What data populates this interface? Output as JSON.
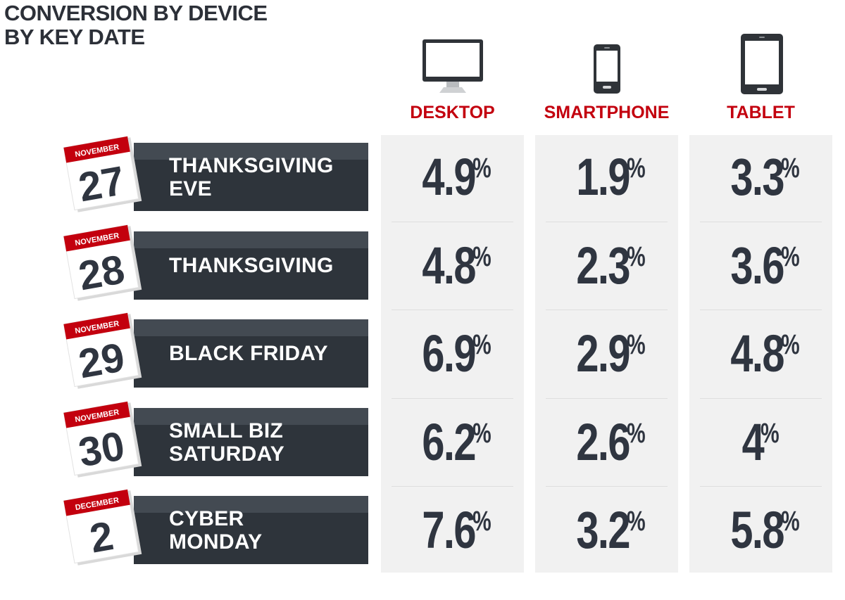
{
  "title": {
    "line1": "CONVERSION BY DEVICE",
    "line2": "BY KEY DATE"
  },
  "colors": {
    "accent_red": "#c3000e",
    "banner_dark": "#2e343b",
    "banner_stripe": "#434a52",
    "column_bg": "#f1f1f1",
    "value_text": "#2f3540"
  },
  "columns": [
    {
      "label": "DESKTOP",
      "icon": "desktop-monitor-icon"
    },
    {
      "label": "SMARTPHONE",
      "icon": "smartphone-icon"
    },
    {
      "label": "TABLET",
      "icon": "tablet-icon"
    }
  ],
  "rows": [
    {
      "month": "NOVEMBER",
      "day": "27",
      "event": [
        "THANKSGIVING",
        "EVE"
      ]
    },
    {
      "month": "NOVEMBER",
      "day": "28",
      "event": [
        "THANKSGIVING"
      ]
    },
    {
      "month": "NOVEMBER",
      "day": "29",
      "event": [
        "BLACK FRIDAY"
      ]
    },
    {
      "month": "NOVEMBER",
      "day": "30",
      "event": [
        "SMALL BIZ",
        "SATURDAY"
      ]
    },
    {
      "month": "DECEMBER",
      "day": "2",
      "event": [
        "CYBER",
        "MONDAY"
      ]
    }
  ],
  "chart_data": {
    "type": "table",
    "title": "CONVERSION BY DEVICE BY KEY DATE",
    "unit": "%",
    "columns": [
      "DESKTOP",
      "SMARTPHONE",
      "TABLET"
    ],
    "row_labels": [
      "THANKSGIVING EVE",
      "THANKSGIVING",
      "BLACK FRIDAY",
      "SMALL BIZ SATURDAY",
      "CYBER MONDAY"
    ],
    "row_dates": [
      "NOVEMBER 27",
      "NOVEMBER 28",
      "NOVEMBER 29",
      "NOVEMBER 30",
      "DECEMBER 2"
    ],
    "series": [
      {
        "name": "DESKTOP",
        "values": [
          "4.9",
          "4.8",
          "6.9",
          "6.2",
          "7.6"
        ]
      },
      {
        "name": "SMARTPHONE",
        "values": [
          "1.9",
          "2.3",
          "2.9",
          "2.6",
          "3.2"
        ]
      },
      {
        "name": "TABLET",
        "values": [
          "3.3",
          "3.6",
          "4.8",
          "4",
          "5.8"
        ]
      }
    ]
  }
}
